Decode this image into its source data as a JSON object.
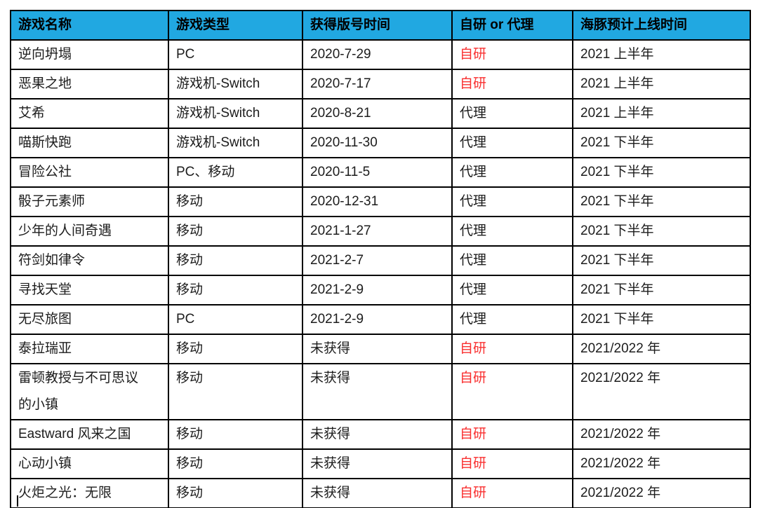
{
  "colors": {
    "header_bg": "#21A8E1",
    "self_dev_red": "#F92F2F",
    "border": "#000000",
    "text": "#1C1C1C"
  },
  "table": {
    "columns": [
      "游戏名称",
      "游戏类型",
      "获得版号时间",
      "自研 or 代理",
      "海豚预计上线时间"
    ],
    "red_highlight_value": "自研",
    "red_highlight_column_index": 3,
    "rows": [
      [
        "逆向坍塌",
        "PC",
        "2020-7-29",
        "自研",
        "2021 上半年"
      ],
      [
        "恶果之地",
        "游戏机-Switch",
        "2020-7-17",
        "自研",
        "2021 上半年"
      ],
      [
        "艾希",
        "游戏机-Switch",
        "2020-8-21",
        "代理",
        "2021 上半年"
      ],
      [
        "喵斯快跑",
        "游戏机-Switch",
        "2020-11-30",
        "代理",
        "2021 下半年"
      ],
      [
        "冒险公社",
        "PC、移动",
        "2020-11-5",
        "代理",
        "2021 下半年"
      ],
      [
        "骰子元素师",
        "移动",
        "2020-12-31",
        "代理",
        "2021 下半年"
      ],
      [
        "少年的人间奇遇",
        "移动",
        "2021-1-27",
        "代理",
        "2021 下半年"
      ],
      [
        "符剑如律令",
        "移动",
        "2021-2-7",
        "代理",
        "2021 下半年"
      ],
      [
        "寻找天堂",
        "移动",
        "2021-2-9",
        "代理",
        "2021 下半年"
      ],
      [
        "无尽旅图",
        "PC",
        "2021-2-9",
        "代理",
        "2021 下半年"
      ],
      [
        "泰拉瑞亚",
        "移动",
        "未获得",
        "自研",
        "2021/2022 年"
      ],
      [
        "雷顿教授与不可思议的小镇",
        "移动",
        "未获得",
        "自研",
        "2021/2022 年"
      ],
      [
        "Eastward 风来之国",
        "移动",
        "未获得",
        "自研",
        "2021/2022 年"
      ],
      [
        "心动小镇",
        "移动",
        "未获得",
        "自研",
        "2021/2022 年"
      ],
      [
        "火炬之光：无限",
        "移动",
        "未获得",
        "自研",
        "2021/2022 年"
      ]
    ]
  }
}
